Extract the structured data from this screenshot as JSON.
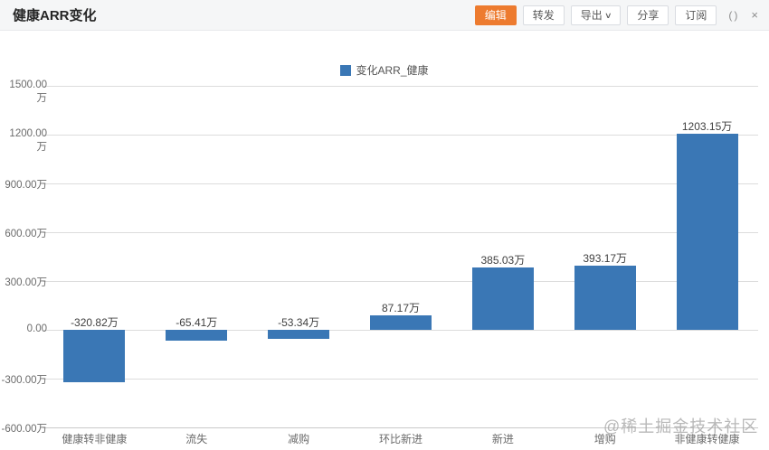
{
  "header": {
    "title": "健康ARR变化",
    "buttons": [
      {
        "label": "编辑",
        "primary": true
      },
      {
        "label": "转发",
        "primary": false
      },
      {
        "label": "导出",
        "primary": false,
        "has_caret": true
      },
      {
        "label": "分享",
        "primary": false
      },
      {
        "label": "订阅",
        "primary": false
      }
    ]
  },
  "icons": {
    "chevron_down": "∨",
    "refresh": "()",
    "close": "×"
  },
  "colors": {
    "accent_orange": "#ed7b2f",
    "bar_blue": "#3a77b5",
    "grid_gray": "#dcdcdc"
  },
  "chart_data": {
    "type": "bar",
    "title": "健康ARR变化",
    "legend_position": "top",
    "grid": true,
    "unit": "万",
    "categories": [
      "健康转非健康",
      "流失",
      "减购",
      "环比新进",
      "新进",
      "增购",
      "非健康转健康"
    ],
    "series": [
      {
        "name": "变化ARR_健康",
        "color": "#3a77b5",
        "values": [
          -320.82,
          -65.41,
          -53.34,
          87.17,
          385.03,
          393.17,
          1203.15
        ]
      }
    ],
    "value_labels": [
      "-320.82万",
      "-65.41万",
      "-53.34万",
      "87.17万",
      "385.03万",
      "393.17万",
      "1203.15万"
    ],
    "y_ticks": [
      "1500.00万",
      "1200.00万",
      "900.00万",
      "600.00万",
      "300.00万",
      "0.00",
      "-300.00万",
      "-600.00万"
    ],
    "y_tick_values": [
      1500,
      1200,
      900,
      600,
      300,
      0,
      -300,
      -600
    ],
    "ylim": [
      -600,
      1500
    ],
    "xlabel": "",
    "ylabel": ""
  },
  "watermark": "@稀土掘金技术社区"
}
